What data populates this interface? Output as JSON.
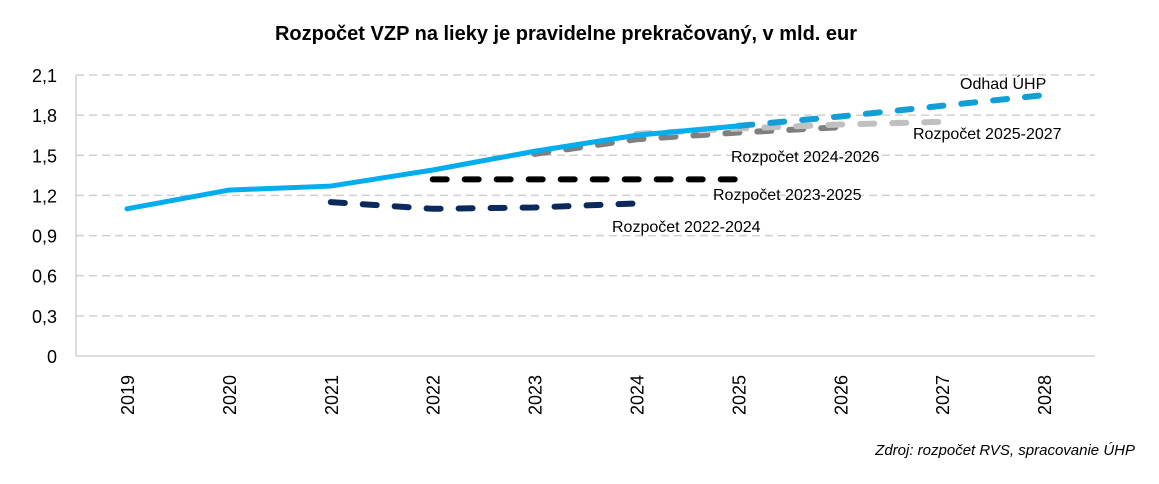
{
  "chart_data": {
    "type": "line",
    "title": "Rozpočet VZP na lieky je pravidelne prekračovaný, v mld. eur",
    "source": "Zdroj: rozpočet RVS, spracovanie ÚHP",
    "categories": [
      "2019",
      "2020",
      "2021",
      "2022",
      "2023",
      "2024",
      "2025",
      "2026",
      "2027",
      "2028"
    ],
    "ylim": [
      0,
      2.1
    ],
    "yticks": [
      "0",
      "0,3",
      "0,6",
      "0,9",
      "1,2",
      "1,5",
      "1,8",
      "2,1"
    ],
    "grid": true,
    "series": [
      {
        "key": "actual",
        "color": "#00adef",
        "dashed": false,
        "x": [
          "2019",
          "2020",
          "2021",
          "2022",
          "2023",
          "2024",
          "2025"
        ],
        "values": [
          1.1,
          1.24,
          1.27,
          1.39,
          1.53,
          1.65,
          1.72
        ]
      },
      {
        "name": "Odhad ÚHP",
        "color": "#119fd8",
        "dashed": true,
        "x": [
          "2025",
          "2026",
          "2027",
          "2028"
        ],
        "values": [
          1.72,
          1.79,
          1.87,
          1.95
        ]
      },
      {
        "name": "Rozpočet 2025-2027",
        "color": "#c0c0c0",
        "dashed": true,
        "x": [
          "2024",
          "2025",
          "2026",
          "2027"
        ],
        "values": [
          1.66,
          1.7,
          1.73,
          1.75
        ]
      },
      {
        "name": "Rozpočet 2024-2026",
        "color": "#7f7f7f",
        "dashed": true,
        "x": [
          "2023",
          "2024",
          "2025",
          "2026"
        ],
        "values": [
          1.51,
          1.62,
          1.67,
          1.71
        ]
      },
      {
        "name": "Rozpočet 2023-2025",
        "color": "#000000",
        "dashed": true,
        "x": [
          "2022",
          "2023",
          "2024",
          "2025"
        ],
        "values": [
          1.32,
          1.32,
          1.32,
          1.32
        ]
      },
      {
        "name": "Rozpočet 2022-2024",
        "color": "#0b2a5b",
        "dashed": true,
        "x": [
          "2021",
          "2022",
          "2023",
          "2024"
        ],
        "values": [
          1.15,
          1.1,
          1.11,
          1.14
        ]
      }
    ]
  }
}
